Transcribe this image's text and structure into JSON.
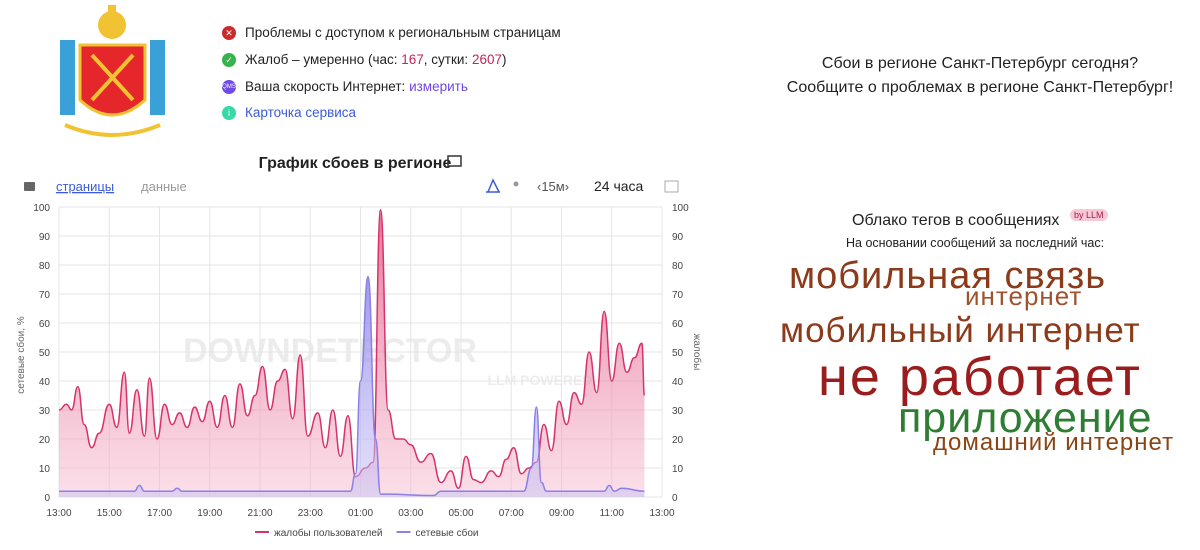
{
  "header": {
    "status": {
      "access": "Проблемы с доступом к региональным страницам",
      "complaints": {
        "text": "Жалоб – умеренно (час: ",
        "hour": "167",
        "sep": ", сутки: ",
        "day": "2607",
        "end": ")"
      },
      "speed": {
        "text": "Ваша скорость Интернет: ",
        "link": "измерить"
      },
      "card": "Карточка сервиса"
    }
  },
  "question": [
    "Сбои в регионе Санкт-Петербург сегодня?",
    "Сообщите о проблемах в регионе Санкт-Петербург!"
  ],
  "controls": {
    "tabs": [
      "страницы",
      "данные"
    ],
    "interval": "‹15м›",
    "range": "24 часа"
  },
  "tag_cloud": {
    "title": "Облако тегов в сообщениях",
    "badge": "by LLM",
    "subtitle": "На основании сообщений за последний час:",
    "tags": [
      "мобильная связь",
      "интернет",
      "мобильный интернет",
      "не работает",
      "приложение",
      "домашний интернет"
    ]
  },
  "chart_data": {
    "type": "area",
    "title": "График сбоев в регионе",
    "watermark": "DOWNDETECTOR",
    "watermark_sub": "LLM POWERED",
    "y_label": "сетевые сбои, %",
    "y2_label": "жалобы",
    "grid": true,
    "xlim": [
      0,
      24
    ],
    "xticks": [
      {
        "value": 0,
        "label": "13:00"
      },
      {
        "value": 2,
        "label": "15:00"
      },
      {
        "value": 4,
        "label": "17:00"
      },
      {
        "value": 6,
        "label": "19:00"
      },
      {
        "value": 8,
        "label": "21:00"
      },
      {
        "value": 10,
        "label": "23:00"
      },
      {
        "value": 12,
        "label": "01:00"
      },
      {
        "value": 14,
        "label": "03:00"
      },
      {
        "value": 16,
        "label": "05:00"
      },
      {
        "value": 18,
        "label": "07:00"
      },
      {
        "value": 20,
        "label": "09:00"
      },
      {
        "value": 22,
        "label": "11:00"
      },
      {
        "value": 24,
        "label": "13:00"
      }
    ],
    "ylim": [
      0,
      100
    ],
    "yticks": [
      0,
      10,
      20,
      30,
      40,
      50,
      60,
      70,
      80,
      90,
      100
    ],
    "y2lim": [
      0,
      100
    ],
    "y2ticks": [
      0,
      10,
      20,
      30,
      40,
      50,
      60,
      70,
      80,
      90,
      100
    ],
    "series": [
      {
        "name": "жалобы пользователей",
        "color": "#d6336c",
        "axis": "y2",
        "x": [
          0,
          0.3,
          0.5,
          0.75,
          1,
          1.3,
          1.6,
          2,
          2.3,
          2.6,
          2.8,
          3.1,
          3.4,
          3.6,
          3.9,
          4.2,
          4.5,
          4.8,
          5.1,
          5.4,
          5.7,
          6,
          6.3,
          6.6,
          6.9,
          7.2,
          7.5,
          7.8,
          8.1,
          8.4,
          8.7,
          9,
          9.3,
          9.6,
          9.9,
          10.3,
          10.6,
          10.9,
          11.2,
          11.5,
          11.8,
          12.2,
          12.5,
          12.8,
          13.1,
          13.4,
          13.7,
          14,
          14.4,
          14.8,
          15.2,
          15.6,
          15.9,
          16.2,
          16.5,
          16.8,
          17.2,
          17.5,
          17.8,
          18.1,
          18.4,
          18.7,
          19,
          19.3,
          19.6,
          19.9,
          20.2,
          20.5,
          20.8,
          21.1,
          21.4,
          21.7,
          22,
          22.3,
          22.6,
          22.9,
          23.2,
          23.3
        ],
        "values": [
          30,
          32,
          30,
          38,
          25,
          17,
          22,
          32,
          24,
          43,
          22,
          37,
          21,
          41,
          20,
          32,
          25,
          29,
          24,
          31,
          26,
          33,
          24,
          35,
          24,
          39,
          28,
          35,
          45,
          30,
          40,
          44,
          27,
          49,
          21,
          29,
          17,
          30,
          14,
          28,
          7,
          10,
          12,
          99,
          30,
          20,
          20,
          18,
          12,
          15,
          5,
          9,
          3,
          14,
          6,
          5,
          9,
          7,
          13,
          17,
          8,
          10,
          12,
          25,
          16,
          33,
          25,
          36,
          32,
          50,
          36,
          64,
          40,
          53,
          43,
          48,
          53,
          35
        ]
      },
      {
        "name": "сетевые сбои",
        "color": "#8b7fe8",
        "axis": "y",
        "x": [
          0,
          3,
          3.2,
          3.4,
          4.5,
          4.7,
          4.9,
          10,
          11.6,
          11.8,
          12,
          12.3,
          12.6,
          12.8,
          13,
          14.9,
          15.2,
          18.5,
          18.8,
          19,
          19.2,
          19.4,
          21.7,
          21.9,
          22.1,
          22.4,
          23.3
        ],
        "values": [
          2,
          2,
          4,
          2,
          2,
          3,
          2,
          2,
          2,
          8,
          40,
          76,
          20,
          1,
          1,
          0.5,
          2,
          2,
          10,
          31,
          5,
          2,
          2,
          4,
          2,
          3,
          2
        ]
      }
    ]
  }
}
